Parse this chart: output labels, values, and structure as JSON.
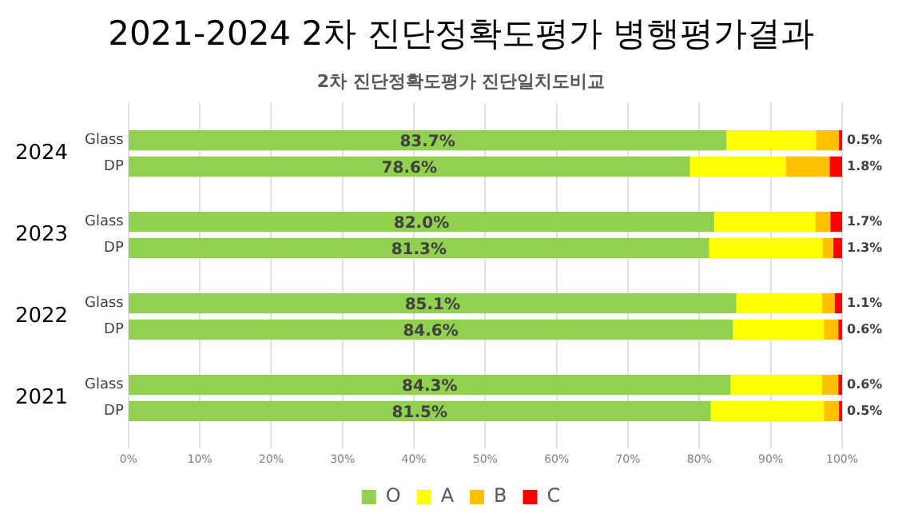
{
  "chart_data": {
    "type": "bar",
    "orientation": "horizontal",
    "stacked": true,
    "title": "2021-2024 2차 진단정확도평가 병행평가결과",
    "subtitle": "2차 진단정확도평가 진단일치도비교",
    "categories": [
      "Glass",
      "DP",
      "Glass",
      "DP",
      "Glass",
      "DP",
      "Glass",
      "DP"
    ],
    "annotations": [
      "2024",
      "2023",
      "2022",
      "2021"
    ],
    "series": [
      {
        "name": "O",
        "color": "#92d050",
        "values": [
          83.7,
          78.6,
          82.0,
          81.3,
          85.1,
          84.6,
          84.3,
          81.5
        ],
        "value_labels": [
          "83.7%",
          "78.6%",
          "82.0%",
          "81.3%",
          "85.1%",
          "84.6%",
          "84.3%",
          "81.5%"
        ]
      },
      {
        "name": "A",
        "color": "#ffff00",
        "values": [
          12.6,
          13.5,
          14.2,
          15.9,
          12.0,
          12.8,
          12.8,
          15.9
        ]
      },
      {
        "name": "B",
        "color": "#ffc000",
        "values": [
          3.2,
          6.1,
          2.1,
          1.5,
          1.8,
          2.0,
          2.3,
          2.1
        ]
      },
      {
        "name": "C",
        "color": "#ff0000",
        "values": [
          0.5,
          1.8,
          1.7,
          1.3,
          1.1,
          0.6,
          0.6,
          0.5
        ],
        "value_labels": [
          "0.5%",
          "1.8%",
          "1.7%",
          "1.3%",
          "1.1%",
          "0.6%",
          "0.6%",
          "0.5%"
        ]
      }
    ],
    "xlim": [
      0,
      100
    ],
    "xticks": [
      {
        "value": 0,
        "label": "0%"
      },
      {
        "value": 10,
        "label": "10%"
      },
      {
        "value": 20,
        "label": "20%"
      },
      {
        "value": 30,
        "label": "30%"
      },
      {
        "value": 40,
        "label": "40%"
      },
      {
        "value": 50,
        "label": "50%"
      },
      {
        "value": 60,
        "label": "60%"
      },
      {
        "value": 70,
        "label": "70%"
      },
      {
        "value": 80,
        "label": "80%"
      },
      {
        "value": 90,
        "label": "90%"
      },
      {
        "value": 100,
        "label": "100%"
      }
    ],
    "grid": "x",
    "legend": "bottom"
  }
}
